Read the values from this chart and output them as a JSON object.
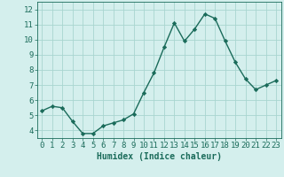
{
  "x": [
    0,
    1,
    2,
    3,
    4,
    5,
    6,
    7,
    8,
    9,
    10,
    11,
    12,
    13,
    14,
    15,
    16,
    17,
    18,
    19,
    20,
    21,
    22,
    23
  ],
  "y": [
    5.3,
    5.6,
    5.5,
    4.6,
    3.8,
    3.8,
    4.3,
    4.5,
    4.7,
    5.1,
    6.5,
    7.8,
    9.5,
    11.1,
    9.9,
    10.7,
    11.7,
    11.4,
    9.9,
    8.5,
    7.4,
    6.7,
    7.0,
    7.3
  ],
  "line_color": "#1a6b5a",
  "marker": "D",
  "marker_size": 2.2,
  "bg_color": "#d4efed",
  "grid_color": "#a8d5d0",
  "xlabel": "Humidex (Indice chaleur)",
  "ylim": [
    3.5,
    12.5
  ],
  "xlim": [
    -0.5,
    23.5
  ],
  "yticks": [
    4,
    5,
    6,
    7,
    8,
    9,
    10,
    11,
    12
  ],
  "xticks": [
    0,
    1,
    2,
    3,
    4,
    5,
    6,
    7,
    8,
    9,
    10,
    11,
    12,
    13,
    14,
    15,
    16,
    17,
    18,
    19,
    20,
    21,
    22,
    23
  ],
  "tick_color": "#1a6b5a",
  "label_color": "#1a6b5a",
  "font_size": 6.5,
  "xlabel_font_size": 7.0,
  "line_width": 1.0
}
